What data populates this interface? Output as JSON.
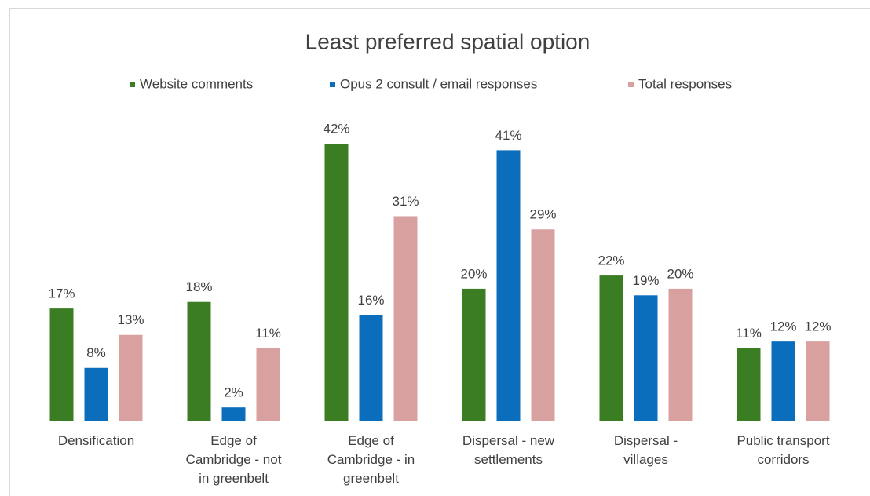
{
  "chart_data": {
    "type": "bar",
    "title": "Least preferred spatial option",
    "categories": [
      "Densification",
      "Edge of Cambridge - not in greenbelt",
      "Edge of Cambridge - in greenbelt",
      "Dispersal - new settlements",
      "Dispersal - villages",
      "Public transport corridors"
    ],
    "series": [
      {
        "name": "Website comments",
        "color": "#3a7d22",
        "values": [
          17,
          18,
          42,
          20,
          22,
          11
        ],
        "value_labels": [
          "17%",
          "18%",
          "42%",
          "20%",
          "22%",
          "11%"
        ]
      },
      {
        "name": "Opus 2 consult / email responses",
        "color": "#0a6ebd",
        "values": [
          8,
          2,
          16,
          41,
          19,
          12
        ],
        "value_labels": [
          "8%",
          "2%",
          "16%",
          "41%",
          "19%",
          "12%"
        ]
      },
      {
        "name": "Total responses",
        "color": "#d9a0a0",
        "values": [
          13,
          11,
          31,
          29,
          20,
          12
        ],
        "value_labels": [
          "13%",
          "11%",
          "31%",
          "29%",
          "20%",
          "12%"
        ]
      }
    ],
    "legend": "top"
  }
}
